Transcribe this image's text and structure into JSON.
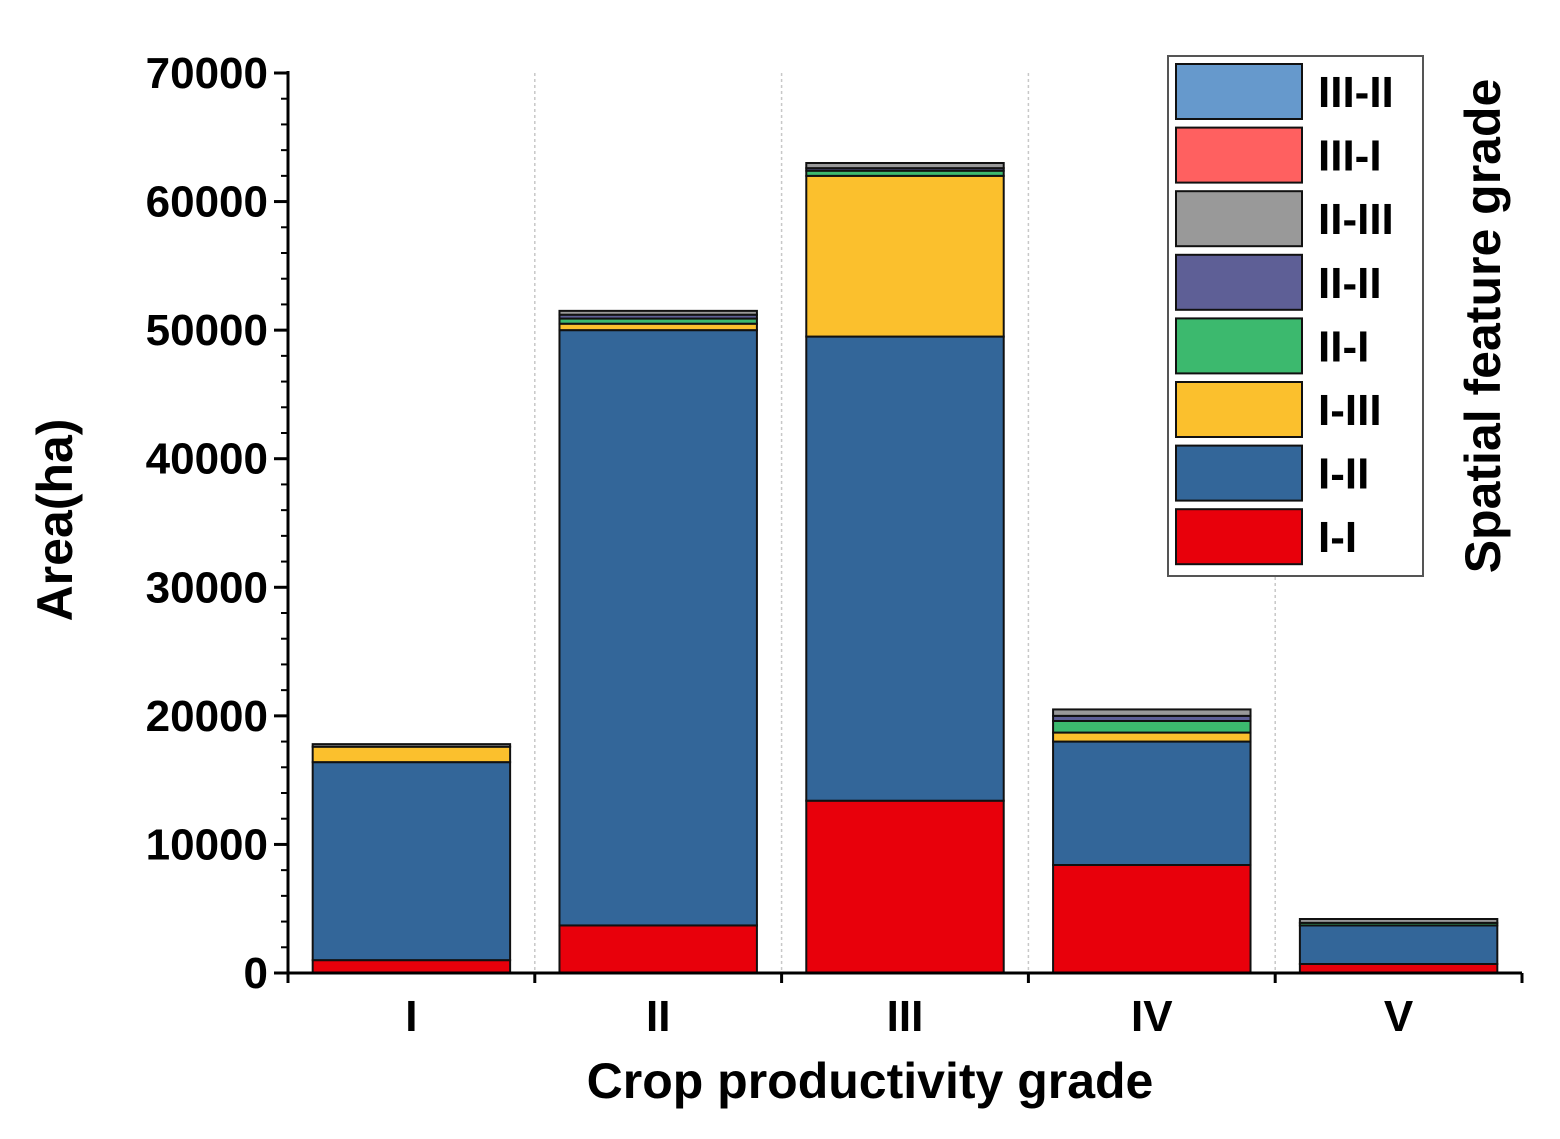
{
  "chart_data": {
    "type": "bar",
    "stacked": true,
    "title": "",
    "xlabel": "Crop productivity grade",
    "ylabel": "Area(ha)",
    "ylim": [
      0,
      70000
    ],
    "yticks": [
      0,
      10000,
      20000,
      30000,
      40000,
      50000,
      60000,
      70000
    ],
    "categories": [
      "I",
      "II",
      "III",
      "IV",
      "V"
    ],
    "series": [
      {
        "name": "I-I",
        "color": "#e8000b",
        "values": [
          1000,
          3700,
          13400,
          8400,
          700
        ]
      },
      {
        "name": "I-II",
        "color": "#336699",
        "values": [
          15400,
          46300,
          36100,
          9600,
          3000
        ]
      },
      {
        "name": "I-III",
        "color": "#fbc02d",
        "values": [
          1200,
          500,
          12500,
          700,
          0
        ]
      },
      {
        "name": "II-I",
        "color": "#3cb96e",
        "values": [
          0,
          400,
          400,
          900,
          200
        ]
      },
      {
        "name": "II-II",
        "color": "#5e5f96",
        "values": [
          0,
          300,
          200,
          400,
          0
        ]
      },
      {
        "name": "II-III",
        "color": "#999999",
        "values": [
          200,
          300,
          400,
          500,
          300
        ]
      },
      {
        "name": "III-I",
        "color": "#ff6060",
        "values": [
          0,
          0,
          0,
          0,
          0
        ]
      },
      {
        "name": "III-II",
        "color": "#6699cc",
        "values": [
          0,
          0,
          0,
          0,
          0
        ]
      }
    ],
    "legend": {
      "title": "Spatial feature grade",
      "position": "top-right",
      "order": [
        "III-II",
        "III-I",
        "II-III",
        "II-II",
        "II-I",
        "I-III",
        "I-II",
        "I-I"
      ]
    },
    "grid": "vertical-dotted-between-categories"
  }
}
